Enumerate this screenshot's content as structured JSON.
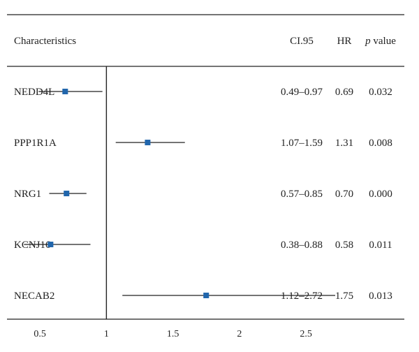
{
  "headers": {
    "characteristics": "Characteristics",
    "ci": "CI.95",
    "hr": "HR",
    "p_prefix": "p",
    "p_suffix": " value"
  },
  "chart_data": {
    "type": "forest",
    "reference_line": 1,
    "xlim": [
      0.2,
      3.35
    ],
    "ticks": [
      0.5,
      1,
      1.5,
      2,
      2.5
    ],
    "tick_labels": [
      "0.5",
      "1",
      "1.5",
      "2",
      "2.5"
    ],
    "marker_color": "#2166ac",
    "rows": [
      {
        "name": "NEDD4L",
        "hr": 0.69,
        "low": 0.49,
        "high": 0.97,
        "ci_text": "0.49–0.97",
        "hr_text": "0.69",
        "p_text": "0.032"
      },
      {
        "name": "PPP1R1A",
        "hr": 1.31,
        "low": 1.07,
        "high": 1.59,
        "ci_text": "1.07–1.59",
        "hr_text": "1.31",
        "p_text": "0.008"
      },
      {
        "name": "NRG1",
        "hr": 0.7,
        "low": 0.57,
        "high": 0.85,
        "ci_text": "0.57–0.85",
        "hr_text": "0.70",
        "p_text": "0.000"
      },
      {
        "name": "KCNJ16",
        "hr": 0.58,
        "low": 0.38,
        "high": 0.88,
        "ci_text": "0.38–0.88",
        "hr_text": "0.58",
        "p_text": "0.011"
      },
      {
        "name": "NECAB2",
        "hr": 1.75,
        "low": 1.12,
        "high": 2.72,
        "ci_text": "1.12–2.72",
        "hr_text": "1.75",
        "p_text": "0.013"
      }
    ]
  }
}
